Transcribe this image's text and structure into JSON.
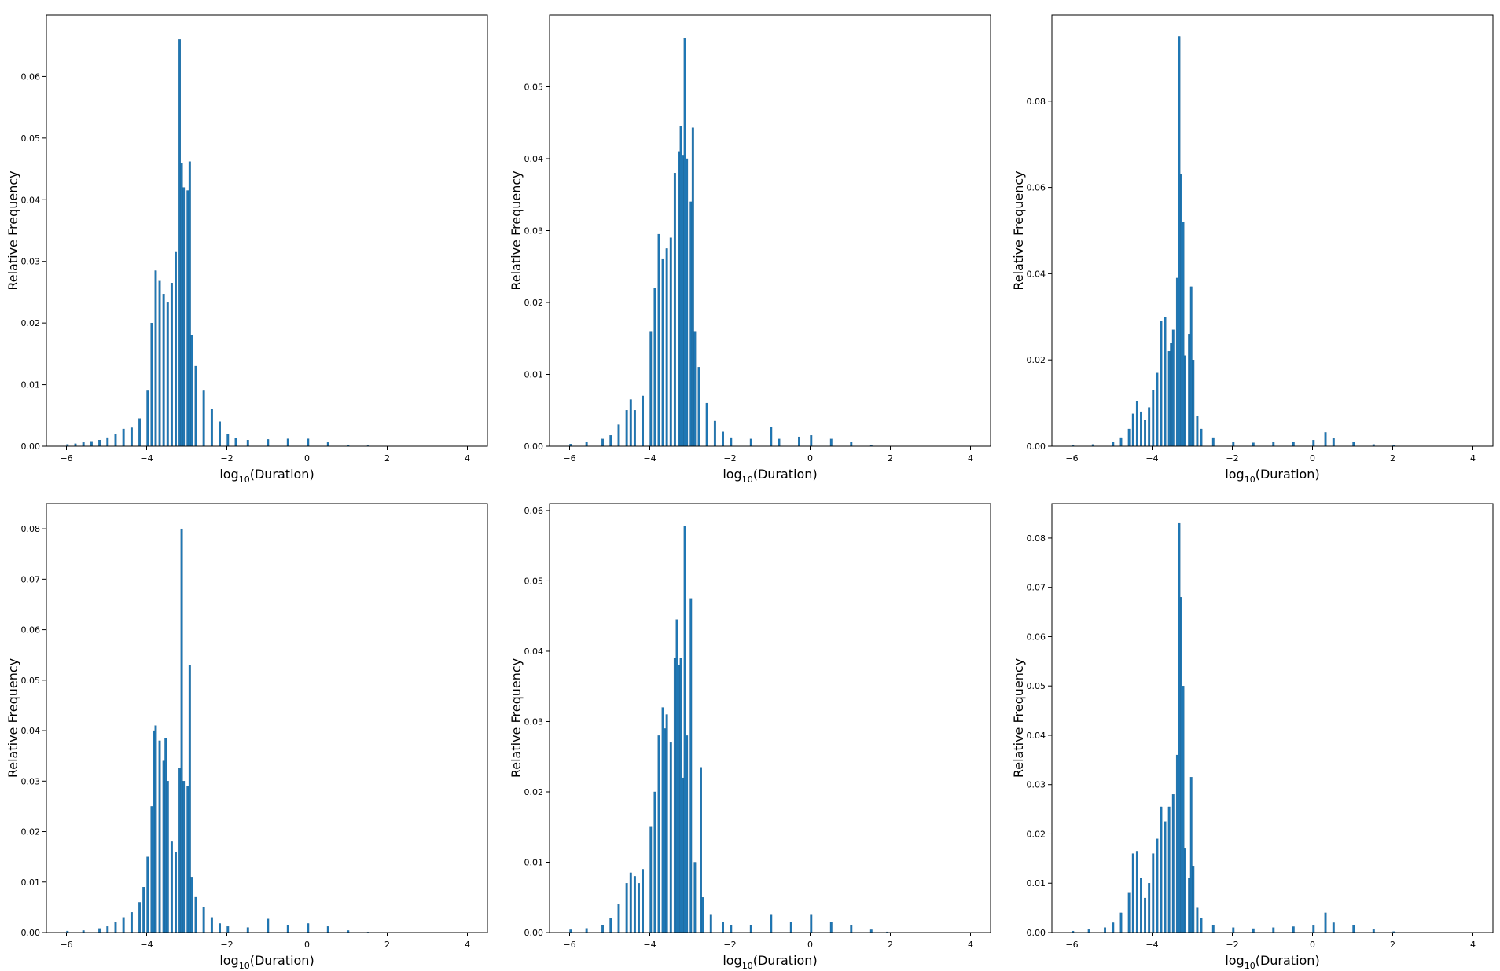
{
  "chart_data": [
    {
      "type": "bar",
      "panel": "top-left",
      "xlabel": "log10(Duration)",
      "ylabel": "Relative Frequency",
      "xlim": [
        -6.5,
        4.5
      ],
      "ylim": [
        0,
        0.07
      ],
      "xticks": [
        "−6",
        "−4",
        "−2",
        "0",
        "2",
        "4"
      ],
      "yticks": [
        "0.00",
        "0.01",
        "0.02",
        "0.03",
        "0.04",
        "0.05",
        "0.06"
      ],
      "bar_color": "#1f77b4",
      "bin_width": 0.05,
      "grid": false,
      "bins": [
        [
          -6.0,
          0.0003
        ],
        [
          -5.8,
          0.0004
        ],
        [
          -5.6,
          0.0006
        ],
        [
          -5.4,
          0.0008
        ],
        [
          -5.2,
          0.001
        ],
        [
          -5.0,
          0.0014
        ],
        [
          -4.8,
          0.002
        ],
        [
          -4.6,
          0.0028
        ],
        [
          -4.4,
          0.003
        ],
        [
          -4.2,
          0.0045
        ],
        [
          -4.0,
          0.009
        ],
        [
          -3.9,
          0.02
        ],
        [
          -3.8,
          0.0285
        ],
        [
          -3.7,
          0.0268
        ],
        [
          -3.6,
          0.0247
        ],
        [
          -3.5,
          0.0233
        ],
        [
          -3.4,
          0.0265
        ],
        [
          -3.3,
          0.0315
        ],
        [
          -3.2,
          0.066
        ],
        [
          -3.15,
          0.046
        ],
        [
          -3.1,
          0.042
        ],
        [
          -3.0,
          0.0415
        ],
        [
          -2.95,
          0.0462
        ],
        [
          -2.9,
          0.018
        ],
        [
          -2.8,
          0.013
        ],
        [
          -2.6,
          0.009
        ],
        [
          -2.4,
          0.006
        ],
        [
          -2.2,
          0.004
        ],
        [
          -2.0,
          0.002
        ],
        [
          -1.8,
          0.0013
        ],
        [
          -1.5,
          0.001
        ],
        [
          -1.0,
          0.0011
        ],
        [
          -0.5,
          0.0012
        ],
        [
          0.0,
          0.0012
        ],
        [
          0.5,
          0.0006
        ],
        [
          1.0,
          0.0002
        ],
        [
          1.5,
          0.0001
        ]
      ]
    },
    {
      "type": "bar",
      "panel": "top-middle",
      "xlabel": "log10(Duration)",
      "ylabel": "Relative Frequency",
      "xlim": [
        -6.5,
        4.5
      ],
      "ylim": [
        0,
        0.06
      ],
      "xticks": [
        "−6",
        "−4",
        "−2",
        "0",
        "2",
        "4"
      ],
      "yticks": [
        "0.00",
        "0.01",
        "0.02",
        "0.03",
        "0.04",
        "0.05"
      ],
      "bar_color": "#1f77b4",
      "bin_width": 0.05,
      "grid": false,
      "bins": [
        [
          -6.0,
          0.0003
        ],
        [
          -5.6,
          0.0006
        ],
        [
          -5.2,
          0.001
        ],
        [
          -5.0,
          0.0015
        ],
        [
          -4.8,
          0.003
        ],
        [
          -4.6,
          0.005
        ],
        [
          -4.5,
          0.0065
        ],
        [
          -4.4,
          0.005
        ],
        [
          -4.2,
          0.007
        ],
        [
          -4.0,
          0.016
        ],
        [
          -3.9,
          0.022
        ],
        [
          -3.8,
          0.0295
        ],
        [
          -3.7,
          0.026
        ],
        [
          -3.6,
          0.0275
        ],
        [
          -3.5,
          0.029
        ],
        [
          -3.4,
          0.038
        ],
        [
          -3.3,
          0.041
        ],
        [
          -3.25,
          0.0445
        ],
        [
          -3.2,
          0.0405
        ],
        [
          -3.15,
          0.0567
        ],
        [
          -3.1,
          0.04
        ],
        [
          -3.0,
          0.034
        ],
        [
          -2.95,
          0.0443
        ],
        [
          -2.9,
          0.016
        ],
        [
          -2.8,
          0.011
        ],
        [
          -2.6,
          0.006
        ],
        [
          -2.4,
          0.0035
        ],
        [
          -2.2,
          0.002
        ],
        [
          -2.0,
          0.0012
        ],
        [
          -1.5,
          0.001
        ],
        [
          -1.0,
          0.0027
        ],
        [
          -0.8,
          0.001
        ],
        [
          -0.3,
          0.0013
        ],
        [
          0.0,
          0.0015
        ],
        [
          0.5,
          0.001
        ],
        [
          1.0,
          0.0006
        ],
        [
          1.5,
          0.0002
        ]
      ]
    },
    {
      "type": "bar",
      "panel": "top-right",
      "xlabel": "log10(Duration)",
      "ylabel": "Relative Frequency",
      "xlim": [
        -6.5,
        4.5
      ],
      "ylim": [
        0,
        0.1
      ],
      "xticks": [
        "−6",
        "−4",
        "−2",
        "0",
        "2",
        "4"
      ],
      "yticks": [
        "0.00",
        "0.02",
        "0.04",
        "0.06",
        "0.08"
      ],
      "bar_color": "#1f77b4",
      "bin_width": 0.05,
      "grid": false,
      "bins": [
        [
          -6.0,
          0.0002
        ],
        [
          -5.5,
          0.0004
        ],
        [
          -5.0,
          0.001
        ],
        [
          -4.8,
          0.002
        ],
        [
          -4.6,
          0.004
        ],
        [
          -4.5,
          0.0075
        ],
        [
          -4.4,
          0.0105
        ],
        [
          -4.3,
          0.008
        ],
        [
          -4.2,
          0.006
        ],
        [
          -4.1,
          0.009
        ],
        [
          -4.0,
          0.013
        ],
        [
          -3.9,
          0.017
        ],
        [
          -3.8,
          0.029
        ],
        [
          -3.7,
          0.03
        ],
        [
          -3.6,
          0.022
        ],
        [
          -3.55,
          0.024
        ],
        [
          -3.5,
          0.027
        ],
        [
          -3.4,
          0.039
        ],
        [
          -3.35,
          0.095
        ],
        [
          -3.3,
          0.063
        ],
        [
          -3.25,
          0.052
        ],
        [
          -3.2,
          0.021
        ],
        [
          -3.1,
          0.026
        ],
        [
          -3.05,
          0.037
        ],
        [
          -3.0,
          0.02
        ],
        [
          -2.9,
          0.007
        ],
        [
          -2.8,
          0.004
        ],
        [
          -2.5,
          0.002
        ],
        [
          -2.0,
          0.001
        ],
        [
          -1.5,
          0.0008
        ],
        [
          -1.0,
          0.0009
        ],
        [
          -0.5,
          0.001
        ],
        [
          0.0,
          0.0014
        ],
        [
          0.3,
          0.0032
        ],
        [
          0.5,
          0.0018
        ],
        [
          1.0,
          0.001
        ],
        [
          1.5,
          0.0004
        ],
        [
          2.0,
          0.0002
        ]
      ]
    },
    {
      "type": "bar",
      "panel": "bottom-left",
      "xlabel": "log10(Duration)",
      "ylabel": "Relative Frequency",
      "xlim": [
        -6.5,
        4.5
      ],
      "ylim": [
        0,
        0.085
      ],
      "xticks": [
        "−6",
        "−4",
        "−2",
        "0",
        "2",
        "4"
      ],
      "yticks": [
        "0.00",
        "0.01",
        "0.02",
        "0.03",
        "0.04",
        "0.05",
        "0.06",
        "0.07",
        "0.08"
      ],
      "bar_color": "#1f77b4",
      "bin_width": 0.05,
      "grid": false,
      "bins": [
        [
          -6.0,
          0.0003
        ],
        [
          -5.6,
          0.0004
        ],
        [
          -5.2,
          0.0008
        ],
        [
          -5.0,
          0.0012
        ],
        [
          -4.8,
          0.002
        ],
        [
          -4.6,
          0.003
        ],
        [
          -4.4,
          0.004
        ],
        [
          -4.2,
          0.006
        ],
        [
          -4.1,
          0.009
        ],
        [
          -4.0,
          0.015
        ],
        [
          -3.9,
          0.025
        ],
        [
          -3.85,
          0.04
        ],
        [
          -3.8,
          0.041
        ],
        [
          -3.7,
          0.038
        ],
        [
          -3.6,
          0.034
        ],
        [
          -3.55,
          0.0385
        ],
        [
          -3.5,
          0.03
        ],
        [
          -3.4,
          0.018
        ],
        [
          -3.3,
          0.016
        ],
        [
          -3.2,
          0.0325
        ],
        [
          -3.15,
          0.08
        ],
        [
          -3.1,
          0.03
        ],
        [
          -3.0,
          0.029
        ],
        [
          -2.95,
          0.053
        ],
        [
          -2.9,
          0.011
        ],
        [
          -2.8,
          0.007
        ],
        [
          -2.6,
          0.005
        ],
        [
          -2.4,
          0.003
        ],
        [
          -2.2,
          0.0018
        ],
        [
          -2.0,
          0.0012
        ],
        [
          -1.5,
          0.001
        ],
        [
          -1.0,
          0.0027
        ],
        [
          -0.5,
          0.0015
        ],
        [
          0.0,
          0.0018
        ],
        [
          0.5,
          0.0012
        ],
        [
          1.0,
          0.0004
        ],
        [
          1.5,
          0.0001
        ]
      ]
    },
    {
      "type": "bar",
      "panel": "bottom-middle",
      "xlabel": "log10(Duration)",
      "ylabel": "Relative Frequency",
      "xlim": [
        -6.5,
        4.5
      ],
      "ylim": [
        0,
        0.061
      ],
      "xticks": [
        "−6",
        "−4",
        "−2",
        "0",
        "2",
        "4"
      ],
      "yticks": [
        "0.00",
        "0.01",
        "0.02",
        "0.03",
        "0.04",
        "0.05",
        "0.06"
      ],
      "bar_color": "#1f77b4",
      "bin_width": 0.05,
      "grid": false,
      "bins": [
        [
          -6.0,
          0.0004
        ],
        [
          -5.6,
          0.0006
        ],
        [
          -5.2,
          0.001
        ],
        [
          -5.0,
          0.002
        ],
        [
          -4.8,
          0.004
        ],
        [
          -4.6,
          0.007
        ],
        [
          -4.5,
          0.0085
        ],
        [
          -4.4,
          0.008
        ],
        [
          -4.3,
          0.007
        ],
        [
          -4.2,
          0.009
        ],
        [
          -4.0,
          0.015
        ],
        [
          -3.9,
          0.02
        ],
        [
          -3.8,
          0.028
        ],
        [
          -3.7,
          0.032
        ],
        [
          -3.65,
          0.029
        ],
        [
          -3.6,
          0.031
        ],
        [
          -3.5,
          0.027
        ],
        [
          -3.4,
          0.039
        ],
        [
          -3.35,
          0.0445
        ],
        [
          -3.3,
          0.038
        ],
        [
          -3.25,
          0.039
        ],
        [
          -3.2,
          0.022
        ],
        [
          -3.15,
          0.0578
        ],
        [
          -3.1,
          0.028
        ],
        [
          -3.0,
          0.0475
        ],
        [
          -2.9,
          0.01
        ],
        [
          -2.75,
          0.0235
        ],
        [
          -2.7,
          0.005
        ],
        [
          -2.5,
          0.0025
        ],
        [
          -2.2,
          0.0015
        ],
        [
          -2.0,
          0.001
        ],
        [
          -1.5,
          0.001
        ],
        [
          -1.0,
          0.0025
        ],
        [
          -0.5,
          0.0015
        ],
        [
          0.0,
          0.0025
        ],
        [
          0.5,
          0.0015
        ],
        [
          1.0,
          0.001
        ],
        [
          1.5,
          0.0004
        ],
        [
          1.9,
          0.0001
        ]
      ]
    },
    {
      "type": "bar",
      "panel": "bottom-right",
      "xlabel": "log10(Duration)",
      "ylabel": "Relative Frequency",
      "xlim": [
        -6.5,
        4.5
      ],
      "ylim": [
        0,
        0.087
      ],
      "xticks": [
        "−6",
        "−4",
        "−2",
        "0",
        "2",
        "4"
      ],
      "yticks": [
        "0.00",
        "0.01",
        "0.02",
        "0.03",
        "0.04",
        "0.05",
        "0.06",
        "0.07",
        "0.08"
      ],
      "bar_color": "#1f77b4",
      "bin_width": 0.05,
      "grid": false,
      "bins": [
        [
          -6.0,
          0.0003
        ],
        [
          -5.6,
          0.0006
        ],
        [
          -5.2,
          0.001
        ],
        [
          -5.0,
          0.002
        ],
        [
          -4.8,
          0.004
        ],
        [
          -4.6,
          0.008
        ],
        [
          -4.5,
          0.016
        ],
        [
          -4.4,
          0.0165
        ],
        [
          -4.3,
          0.011
        ],
        [
          -4.2,
          0.007
        ],
        [
          -4.1,
          0.01
        ],
        [
          -4.0,
          0.016
        ],
        [
          -3.9,
          0.019
        ],
        [
          -3.8,
          0.0255
        ],
        [
          -3.7,
          0.0225
        ],
        [
          -3.6,
          0.0255
        ],
        [
          -3.5,
          0.028
        ],
        [
          -3.4,
          0.036
        ],
        [
          -3.35,
          0.083
        ],
        [
          -3.3,
          0.068
        ],
        [
          -3.25,
          0.05
        ],
        [
          -3.2,
          0.017
        ],
        [
          -3.1,
          0.011
        ],
        [
          -3.05,
          0.0315
        ],
        [
          -3.0,
          0.0135
        ],
        [
          -2.9,
          0.005
        ],
        [
          -2.8,
          0.003
        ],
        [
          -2.5,
          0.0015
        ],
        [
          -2.0,
          0.001
        ],
        [
          -1.5,
          0.0008
        ],
        [
          -1.0,
          0.001
        ],
        [
          -0.5,
          0.0012
        ],
        [
          0.0,
          0.0014
        ],
        [
          0.3,
          0.004
        ],
        [
          0.5,
          0.002
        ],
        [
          1.0,
          0.0015
        ],
        [
          1.5,
          0.0006
        ],
        [
          2.0,
          0.0002
        ]
      ]
    }
  ]
}
